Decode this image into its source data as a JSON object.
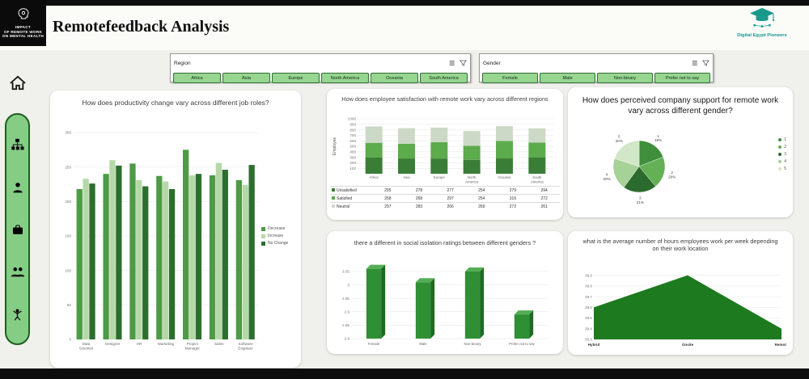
{
  "header": {
    "title": "Remotefeedback Analysis",
    "left_logo": {
      "line1": "IMPACT",
      "line2": "OF REMOTE WORK",
      "line3": "ON MENTAL HEALTH"
    },
    "right_logo": {
      "text": "Digital Egypt Pioneers",
      "color": "#16988a"
    }
  },
  "slicers": [
    {
      "label": "Region",
      "options": [
        "Africa",
        "Asia",
        "Europe",
        "North America",
        "Oceania",
        "South America"
      ]
    },
    {
      "label": "Gender",
      "options": [
        "Female",
        "Male",
        "Non-binary",
        "Prefer not to say"
      ]
    }
  ],
  "chart_data": [
    {
      "type": "bar",
      "title": "How does productivity change vary across different job roles?",
      "categories": [
        "Data Scientist",
        "Designer",
        "HR",
        "Marketing",
        "Project Manager",
        "Sales",
        "Software Engineer"
      ],
      "series": [
        {
          "name": "Decrease",
          "color": "#4e9a47",
          "values": [
            218,
            240,
            255,
            237,
            275,
            238,
            231
          ]
        },
        {
          "name": "Increase",
          "color": "#b5d9a6",
          "values": [
            233,
            260,
            231,
            229,
            238,
            256,
            224
          ]
        },
        {
          "name": "No Change",
          "color": "#2d6e2f",
          "values": [
            226,
            252,
            222,
            218,
            240,
            246,
            253
          ]
        }
      ],
      "ylim": [
        0,
        300
      ],
      "yticks": [
        0,
        50,
        100,
        150,
        200,
        250,
        300
      ],
      "legend_position": "right"
    },
    {
      "type": "stacked-bar",
      "title": "How does employee satisfaction with remote work vary across different regions",
      "ylabel": "Employee",
      "categories": [
        "Africa",
        "Asia",
        "Europe",
        "North America",
        "Oceania",
        "South America"
      ],
      "series": [
        {
          "name": "Unsatisfied",
          "color": "#3a7d36",
          "values": [
            295,
            278,
            277,
            254,
            279,
            294
          ]
        },
        {
          "name": "Satisfied",
          "color": "#5cab4c",
          "values": [
            268,
            268,
            297,
            254,
            316,
            272
          ]
        },
        {
          "name": "Neutral",
          "color": "#cdd9c7",
          "values": [
            297,
            283,
            266,
            269,
            272,
            261
          ]
        }
      ],
      "ylim": [
        0,
        1000
      ],
      "yticks": [
        100,
        200,
        300,
        400,
        500,
        600,
        700,
        800,
        900,
        1000
      ]
    },
    {
      "type": "pie",
      "title": "How does perceived company support for remote work vary across different gender?",
      "labels": [
        "1",
        "2",
        "3",
        "4",
        "5"
      ],
      "values": [
        19,
        20,
        21,
        20,
        20
      ],
      "colors": [
        "#3f8f3d",
        "#63b154",
        "#2b6b2d",
        "#a6d197",
        "#d2e6c8"
      ],
      "legend_position": "right"
    },
    {
      "type": "bar3d",
      "title": "there a different in social isolation ratings between different genders ?",
      "categories": [
        "Female",
        "Male",
        "Non-binary",
        "Prefer not to say"
      ],
      "values": [
        3.06,
        3.01,
        3.05,
        2.89
      ],
      "color": "#2f8f35",
      "color_top": "#54ae54",
      "color_side": "#1d6b22",
      "ylim": [
        2.8,
        3.08
      ],
      "yticks": [
        2.8,
        2.85,
        2.9,
        2.95,
        3,
        3.05
      ]
    },
    {
      "type": "area",
      "title": "what is the average number of hours employees work per week depending on their work location",
      "categories": [
        "Hybrid",
        "Onsite",
        "Remote"
      ],
      "values": [
        39.6,
        39.9,
        39.4
      ],
      "color": "#1e7a1e",
      "ylim": [
        39.3,
        39.92
      ],
      "yticks": [
        39.3,
        39.4,
        39.5,
        39.6,
        39.7,
        39.8,
        39.9
      ]
    }
  ]
}
